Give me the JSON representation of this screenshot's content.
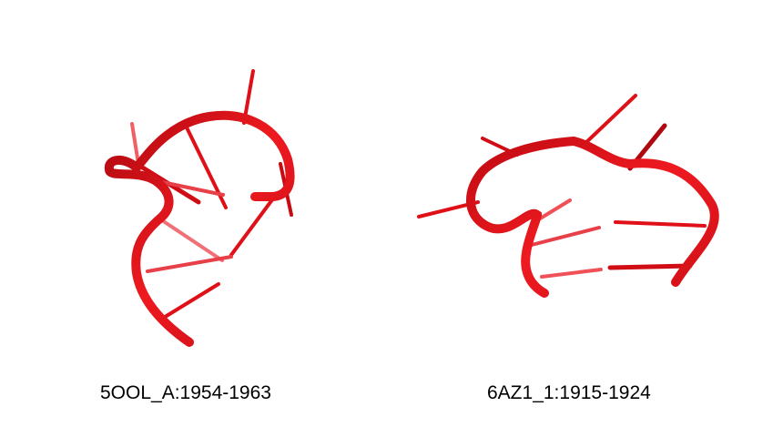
{
  "structures": [
    {
      "label": "5OOL_A:1954-1963",
      "color": "#e8141a"
    },
    {
      "label": "6AZ1_1:1915-1924",
      "color": "#e8141a"
    }
  ]
}
